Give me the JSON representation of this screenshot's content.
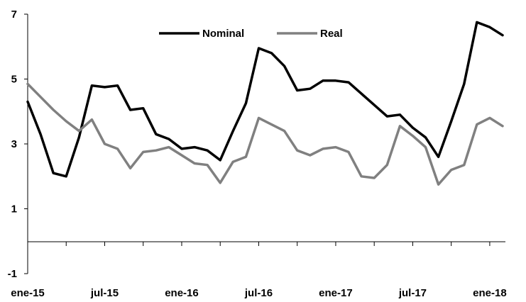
{
  "chart_data": {
    "type": "line",
    "title": "",
    "xlabel": "",
    "ylabel": "",
    "ylim": [
      -1,
      7
    ],
    "yticks": [
      -1,
      1,
      3,
      5,
      7
    ],
    "x_tick_labels": [
      "ene-15",
      "jul-15",
      "ene-16",
      "jul-16",
      "ene-17",
      "jul-17",
      "ene-18"
    ],
    "months_count": 38,
    "legend": "top-center",
    "grid": false,
    "series": [
      {
        "name": "Nominal",
        "color": "#000000",
        "values": [
          4.3,
          3.3,
          2.1,
          2.0,
          3.2,
          4.8,
          4.75,
          4.8,
          4.05,
          4.1,
          3.3,
          3.15,
          2.85,
          2.9,
          2.8,
          2.5,
          3.4,
          4.25,
          5.95,
          5.8,
          5.4,
          4.65,
          4.7,
          4.95,
          4.95,
          4.9,
          4.55,
          4.2,
          3.85,
          3.9,
          3.5,
          3.2,
          2.6,
          3.7,
          4.85,
          6.75,
          6.6,
          6.35
        ]
      },
      {
        "name": "Real",
        "color": "#808080",
        "values": [
          4.85,
          4.45,
          4.05,
          3.7,
          3.4,
          3.75,
          3.0,
          2.85,
          2.25,
          2.75,
          2.8,
          2.9,
          2.65,
          2.4,
          2.35,
          1.8,
          2.45,
          2.6,
          3.8,
          3.6,
          3.4,
          2.8,
          2.65,
          2.85,
          2.9,
          2.75,
          2.0,
          1.95,
          2.35,
          3.55,
          3.25,
          2.9,
          1.75,
          2.2,
          2.35,
          3.6,
          3.8,
          3.55
        ]
      }
    ]
  }
}
